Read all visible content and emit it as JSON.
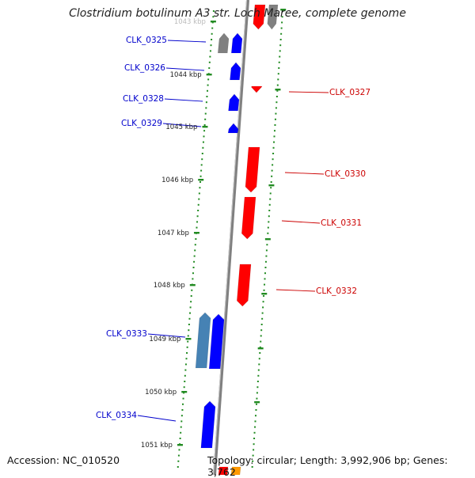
{
  "title": "Clostridium botulinum A3 str. Loch Maree, complete genome",
  "footer": {
    "accession": "Accession: NC_010520",
    "summary": "Topology: circular; Length: 3,992,906 bp; Genes: 3,762"
  },
  "colors": {
    "forward_gene": "#ff0000",
    "reverse_gene": "#0000ff",
    "reverse_gene_light": "#4682b4",
    "other_feature": "#808080",
    "ruler_tick": "#228b22",
    "backbone": "#808080",
    "label_forward": "#cc0000",
    "label_reverse": "#0000cc",
    "orange_feature": "#ff9900"
  },
  "ruler_labels": [
    "1043 kbp",
    "1044 kbp",
    "1045 kbp",
    "1046 kbp",
    "1047 kbp",
    "1048 kbp",
    "1049 kbp",
    "1050 kbp",
    "1051 kbp"
  ],
  "genes": [
    {
      "label": "CLK_0325",
      "strand": "reverse"
    },
    {
      "label": "CLK_0326",
      "strand": "reverse"
    },
    {
      "label": "CLK_0327",
      "strand": "forward"
    },
    {
      "label": "CLK_0328",
      "strand": "reverse"
    },
    {
      "label": "CLK_0329",
      "strand": "reverse"
    },
    {
      "label": "CLK_0330",
      "strand": "forward"
    },
    {
      "label": "CLK_0331",
      "strand": "forward"
    },
    {
      "label": "CLK_0332",
      "strand": "forward"
    },
    {
      "label": "CLK_0333",
      "strand": "reverse"
    },
    {
      "label": "CLK_0334",
      "strand": "reverse"
    }
  ]
}
